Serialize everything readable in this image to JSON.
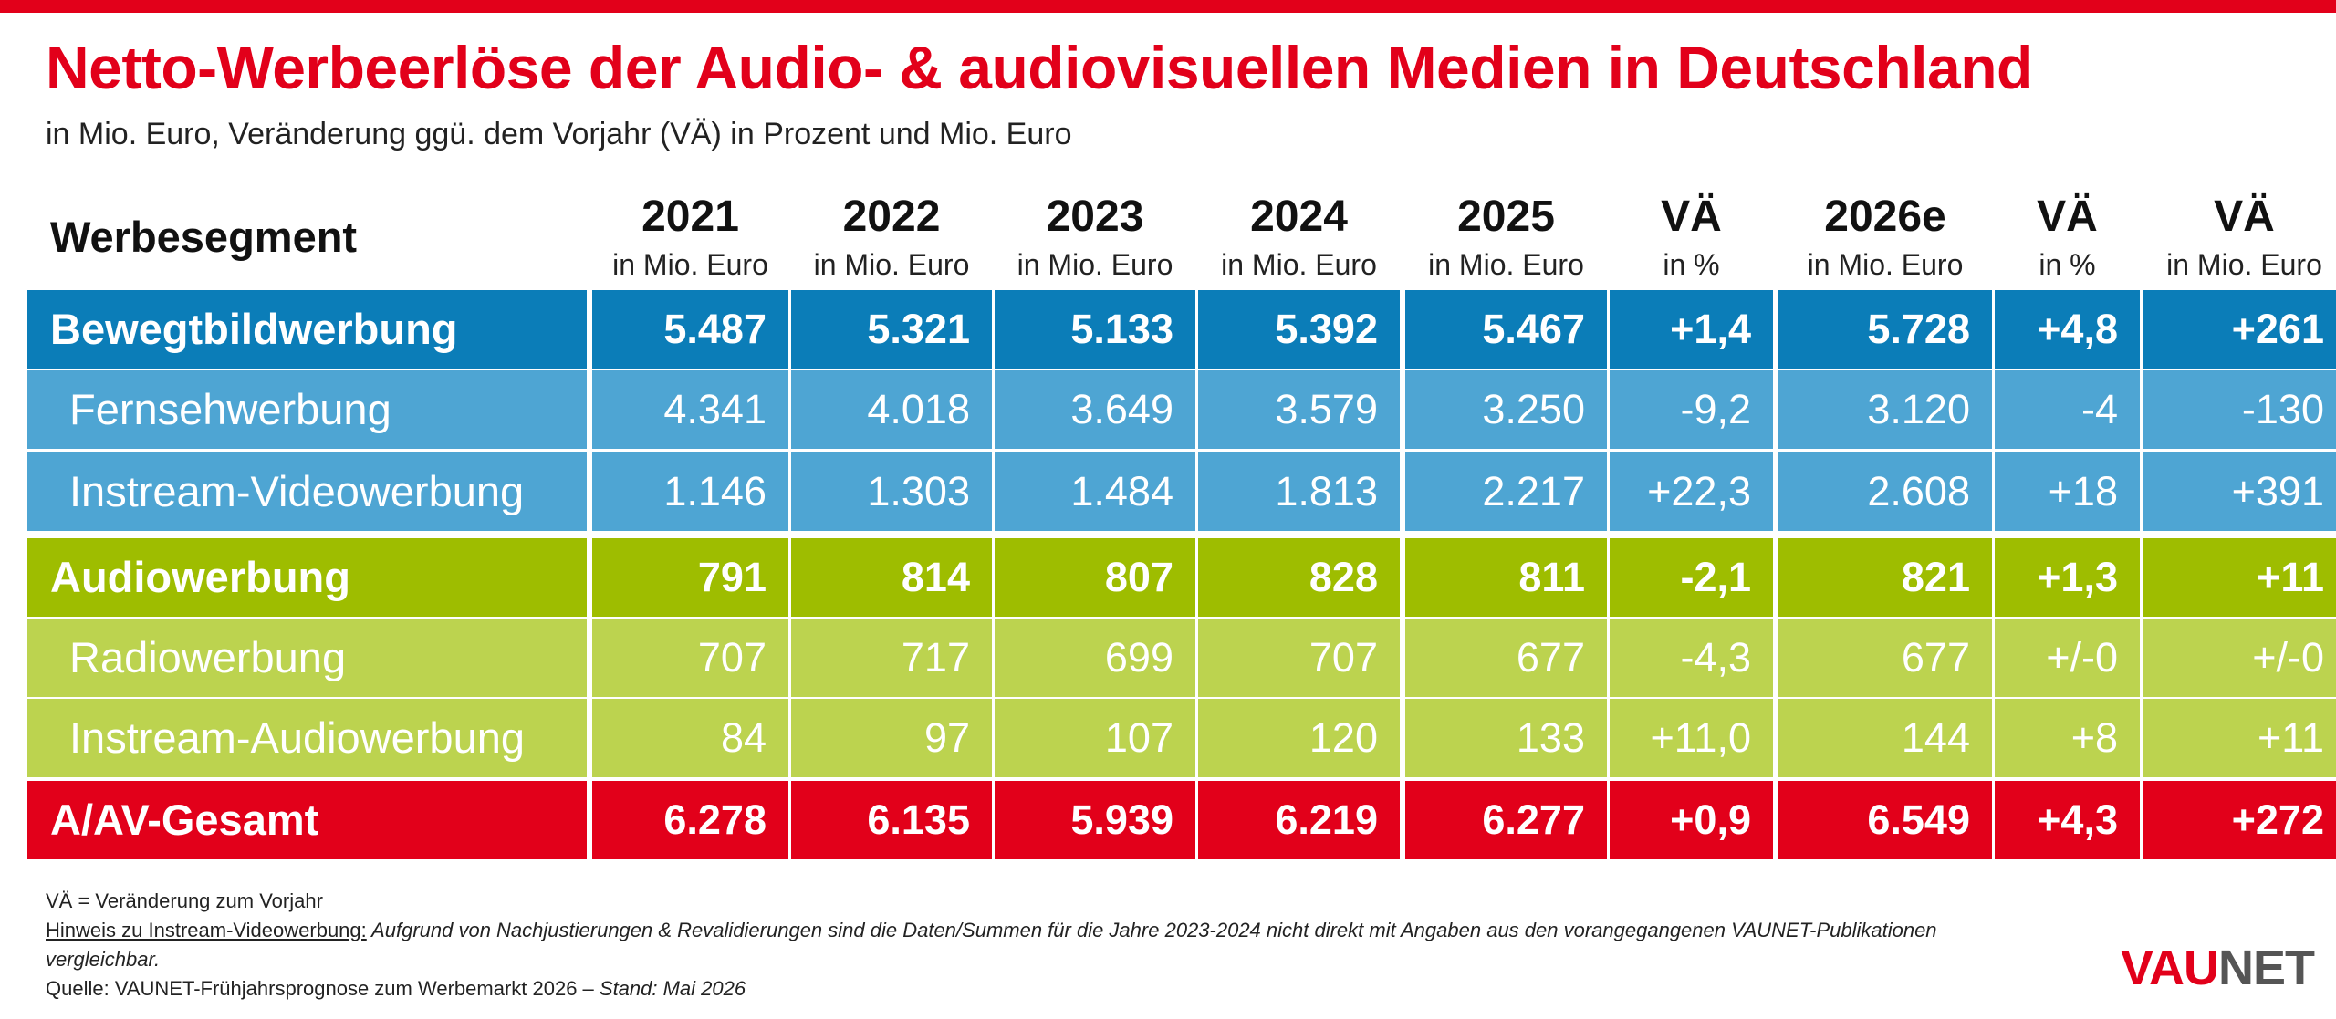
{
  "title": "Netto-Werbeerlöse der Audio- & audiovisuellen Medien in Deutschland",
  "subtitle": "in Mio. Euro, Veränderung ggü. dem Vorjahr (VÄ) in Prozent und Mio. Euro",
  "colors": {
    "accent_red": "#e2001a",
    "bewegtbild_main": "#0b7db8",
    "bewegtbild_sub": "#4ea5d3",
    "audio_main": "#9ebd00",
    "audio_sub": "#bcd34f",
    "total": "#e2001a"
  },
  "chart_data": {
    "type": "table",
    "title": "Netto-Werbeerlöse der Audio- & audiovisuellen Medien in Deutschland",
    "first_header": "Werbesegment",
    "columns": [
      {
        "label": "2021",
        "unit": "in Mio. Euro"
      },
      {
        "label": "2022",
        "unit": "in Mio. Euro"
      },
      {
        "label": "2023",
        "unit": "in Mio. Euro"
      },
      {
        "label": "2024",
        "unit": "in Mio. Euro"
      },
      {
        "label": "2025",
        "unit": "in Mio. Euro"
      },
      {
        "label": "VÄ",
        "unit": "in %"
      },
      {
        "label": "2026e",
        "unit": "in Mio. Euro"
      },
      {
        "label": "VÄ",
        "unit": "in %"
      },
      {
        "label": "VÄ",
        "unit": "in Mio. Euro"
      }
    ],
    "rows": [
      {
        "label": "Bewegtbildwerbung",
        "level": "main",
        "group": "bewegtbild",
        "values": [
          "5.487",
          "5.321",
          "5.133",
          "5.392",
          "5.467",
          "+1,4",
          "5.728",
          "+4,8",
          "+261"
        ]
      },
      {
        "label": "Fernsehwerbung",
        "level": "sub",
        "group": "bewegtbild",
        "values": [
          "4.341",
          "4.018",
          "3.649",
          "3.579",
          "3.250",
          "-9,2",
          "3.120",
          "-4",
          "-130"
        ]
      },
      {
        "label": "Instream-Videowerbung",
        "level": "sub",
        "group": "bewegtbild",
        "values": [
          "1.146",
          "1.303",
          "1.484",
          "1.813",
          "2.217",
          "+22,3",
          "2.608",
          "+18",
          "+391"
        ]
      },
      {
        "label": "Audiowerbung",
        "level": "main",
        "group": "audio",
        "values": [
          "791",
          "814",
          "807",
          "828",
          "811",
          "-2,1",
          "821",
          "+1,3",
          "+11"
        ]
      },
      {
        "label": "Radiowerbung",
        "level": "sub",
        "group": "audio",
        "values": [
          "707",
          "717",
          "699",
          "707",
          "677",
          "-4,3",
          "677",
          "+/-0",
          "+/-0"
        ]
      },
      {
        "label": "Instream-Audiowerbung",
        "level": "sub",
        "group": "audio",
        "values": [
          "84",
          "97",
          "107",
          "120",
          "133",
          "+11,0",
          "144",
          "+8",
          "+11"
        ]
      },
      {
        "label": "A/AV-Gesamt",
        "level": "main",
        "group": "total",
        "values": [
          "6.278",
          "6.135",
          "5.939",
          "6.219",
          "6.277",
          "+0,9",
          "6.549",
          "+4,3",
          "+272"
        ]
      }
    ]
  },
  "footnotes": {
    "line1": "VÄ = Veränderung zum Vorjahr",
    "hint_label": "Hinweis zu Instream-Videowerbung:",
    "hint_text": " Aufgrund von Nachjustierungen & Revalidierungen sind die Daten/Summen für die Jahre 2023-2024 nicht direkt mit Angaben aus den vorangegangenen VAUNET-Publikationen vergleichbar.",
    "source_prefix": "Quelle: VAUNET-Frühjahrsprognose zum Werbemarkt 2026 – ",
    "source_stand": "Stand: Mai 2026"
  },
  "logo": {
    "part1": "VAU",
    "part2": "NET"
  }
}
